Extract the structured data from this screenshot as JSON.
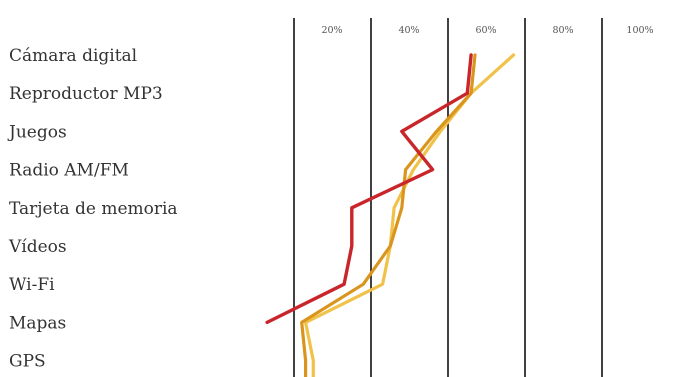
{
  "chart_data": {
    "type": "line",
    "orientation": "horizontal",
    "categories": [
      "Cámara digital",
      "Reproductor MP3",
      "Juegos",
      "Radio AM/FM",
      "Tarjeta de memoria",
      "Vídeos",
      "Wi-Fi",
      "Mapas",
      "GPS"
    ],
    "x_ticks": [
      "20%",
      "40%",
      "60%",
      "80%",
      "100%"
    ],
    "x_tick_values": [
      20,
      40,
      60,
      80,
      100
    ],
    "xlim": [
      0,
      100
    ],
    "grid": true,
    "legend": false,
    "series": [
      {
        "color": "#c8262b",
        "values": [
          66,
          65,
          48,
          56,
          35,
          35,
          33,
          13,
          null
        ],
        "end_value": null
      },
      {
        "color": "#d9951d",
        "values": [
          67,
          66,
          57,
          49,
          48,
          45,
          38,
          22,
          23
        ],
        "end_value": 23
      },
      {
        "color": "#f0c24a",
        "values": [
          77,
          66,
          58,
          51,
          46,
          45,
          43,
          23,
          25
        ],
        "end_value": 25
      }
    ]
  }
}
